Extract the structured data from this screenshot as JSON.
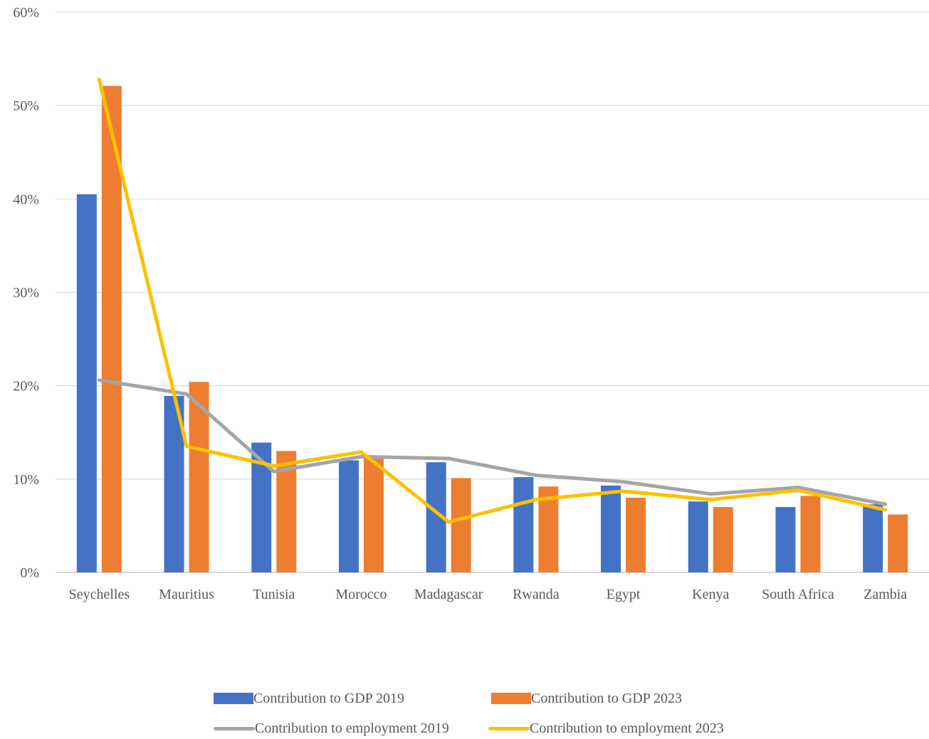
{
  "chart_data": {
    "type": "bar",
    "categories": [
      "Seychelles",
      "Mauritius",
      "Tunisia",
      "Morocco",
      "Madagascar",
      "Rwanda",
      "Egypt",
      "Kenya",
      "South Africa",
      "Zambia"
    ],
    "y_ticks": [
      "0%",
      "10%",
      "20%",
      "30%",
      "40%",
      "50%",
      "60%"
    ],
    "ylim": [
      0,
      60
    ],
    "grid": true,
    "legend_position": "bottom",
    "series": [
      {
        "name": "Contribution to GDP 2019",
        "type": "bar",
        "color": "#4472C4",
        "values": [
          40.5,
          18.9,
          13.9,
          12.0,
          11.8,
          10.2,
          9.3,
          7.6,
          7.0,
          7.3
        ]
      },
      {
        "name": "Contribution to GDP 2023",
        "type": "bar",
        "color": "#ED7D31",
        "values": [
          52.1,
          20.4,
          13.0,
          12.3,
          10.1,
          9.2,
          8.0,
          7.0,
          8.2,
          6.2
        ]
      },
      {
        "name": "Contribution to employment 2019",
        "type": "line",
        "color": "#A5A5A5",
        "values": [
          20.6,
          19.1,
          10.8,
          12.4,
          12.2,
          10.4,
          9.7,
          8.4,
          9.1,
          7.3
        ]
      },
      {
        "name": "Contribution to employment 2023",
        "type": "line",
        "color": "#FFC000",
        "values": [
          52.8,
          13.5,
          11.4,
          12.9,
          5.4,
          7.8,
          8.7,
          7.8,
          8.8,
          6.7
        ]
      }
    ]
  }
}
